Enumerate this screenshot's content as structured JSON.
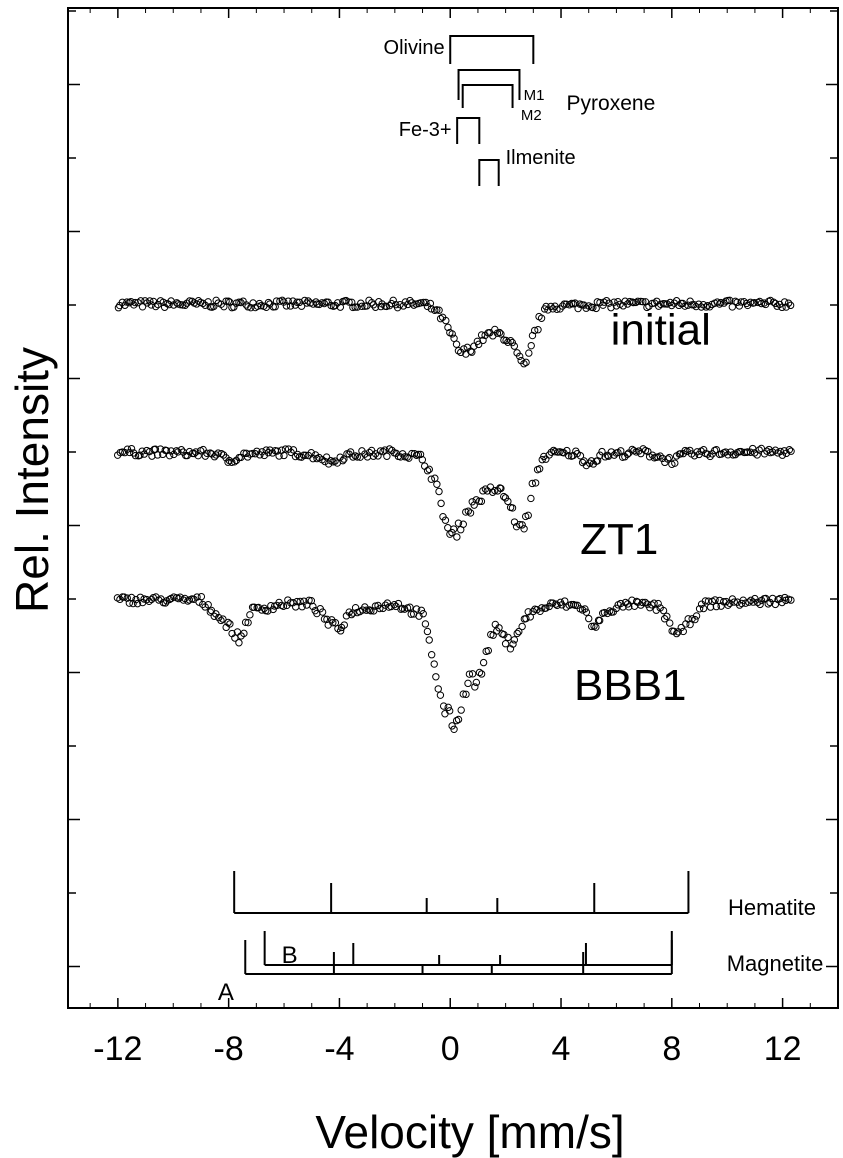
{
  "chart_data": {
    "type": "scatter",
    "xlabel": "Velocity [mm/s]",
    "ylabel": "Rel. Intensity",
    "xlim": [
      -13.8,
      14.0
    ],
    "x_ticks": [
      -12,
      -8,
      -4,
      0,
      4,
      8,
      12
    ],
    "x_tick_labels": [
      "-12",
      "-8",
      "-4",
      "0",
      "4",
      "8",
      "12"
    ],
    "grid": false,
    "series": [
      {
        "name": "initial",
        "baseline": 2.0,
        "points": [
          [
            -12,
            2.0
          ],
          [
            -9,
            2.0
          ],
          [
            -6,
            2.0
          ],
          [
            -3,
            2.0
          ],
          [
            -1,
            2.0
          ],
          [
            -0.6,
            1.94
          ],
          [
            -0.3,
            1.82
          ],
          [
            0,
            1.6
          ],
          [
            0.2,
            1.45
          ],
          [
            0.4,
            1.33
          ],
          [
            0.6,
            1.35
          ],
          [
            0.9,
            1.45
          ],
          [
            1.2,
            1.55
          ],
          [
            1.6,
            1.6
          ],
          [
            1.9,
            1.58
          ],
          [
            2.2,
            1.48
          ],
          [
            2.5,
            1.25
          ],
          [
            2.7,
            1.1
          ],
          [
            3.0,
            1.55
          ],
          [
            3.3,
            1.85
          ],
          [
            3.6,
            1.97
          ],
          [
            6,
            2.0
          ],
          [
            9,
            2.0
          ],
          [
            12.3,
            2.0
          ]
        ]
      },
      {
        "name": "ZT1",
        "baseline": 0.0,
        "points": [
          [
            -12,
            0.0
          ],
          [
            -8.5,
            -0.02
          ],
          [
            -8,
            -0.12
          ],
          [
            -7.5,
            -0.04
          ],
          [
            -6,
            0.0
          ],
          [
            -4.8,
            -0.05
          ],
          [
            -4.3,
            -0.14
          ],
          [
            -3.8,
            -0.05
          ],
          [
            -2,
            0.0
          ],
          [
            -1,
            -0.08
          ],
          [
            -0.6,
            -0.35
          ],
          [
            -0.3,
            -0.75
          ],
          [
            0,
            -1.15
          ],
          [
            0.3,
            -1.05
          ],
          [
            0.6,
            -0.8
          ],
          [
            1.0,
            -0.65
          ],
          [
            1.3,
            -0.55
          ],
          [
            1.6,
            -0.5
          ],
          [
            1.9,
            -0.55
          ],
          [
            2.2,
            -0.75
          ],
          [
            2.5,
            -1.05
          ],
          [
            2.8,
            -0.9
          ],
          [
            3.0,
            -0.45
          ],
          [
            3.3,
            -0.1
          ],
          [
            3.6,
            -0.02
          ],
          [
            4.5,
            -0.02
          ],
          [
            5,
            -0.15
          ],
          [
            5.5,
            -0.04
          ],
          [
            7,
            0.0
          ],
          [
            8,
            -0.12
          ],
          [
            8.5,
            -0.03
          ],
          [
            10,
            0.0
          ],
          [
            12.3,
            0.0
          ]
        ]
      },
      {
        "name": "BBB1",
        "baseline": -2.0,
        "points": [
          [
            -12,
            -2.0
          ],
          [
            -9,
            -2.0
          ],
          [
            -8,
            -2.35
          ],
          [
            -7.6,
            -2.55
          ],
          [
            -7.2,
            -2.15
          ],
          [
            -6,
            -2.05
          ],
          [
            -5,
            -2.05
          ],
          [
            -4.4,
            -2.3
          ],
          [
            -4.0,
            -2.4
          ],
          [
            -3.6,
            -2.15
          ],
          [
            -2,
            -2.05
          ],
          [
            -1.0,
            -2.2
          ],
          [
            -0.6,
            -2.8
          ],
          [
            -0.3,
            -3.4
          ],
          [
            0,
            -3.6
          ],
          [
            0.2,
            -3.7
          ],
          [
            0.4,
            -3.45
          ],
          [
            0.7,
            -2.95
          ],
          [
            0.9,
            -3.15
          ],
          [
            1.1,
            -3.0
          ],
          [
            1.3,
            -2.7
          ],
          [
            1.6,
            -2.35
          ],
          [
            1.9,
            -2.5
          ],
          [
            2.2,
            -2.6
          ],
          [
            2.5,
            -2.4
          ],
          [
            2.8,
            -2.2
          ],
          [
            3.4,
            -2.1
          ],
          [
            4,
            -2.05
          ],
          [
            4.8,
            -2.1
          ],
          [
            5.2,
            -2.4
          ],
          [
            5.6,
            -2.15
          ],
          [
            6.5,
            -2.05
          ],
          [
            7.6,
            -2.1
          ],
          [
            8.2,
            -2.5
          ],
          [
            8.6,
            -2.3
          ],
          [
            9.2,
            -2.05
          ],
          [
            12.3,
            -2.0
          ]
        ]
      }
    ],
    "curve_labels": [
      "initial",
      "ZT1",
      "BBB1"
    ],
    "top_markers": [
      {
        "label": "Olivine",
        "x1": 0.0,
        "x2": 3.0
      },
      {
        "label": "M1",
        "x1": 0.3,
        "x2": 2.5
      },
      {
        "label": "M2",
        "x1": 0.45,
        "x2": 2.25
      },
      {
        "label": "Pyroxene"
      },
      {
        "label": "Fe-3+",
        "x1": 0.25,
        "x2": 1.05
      },
      {
        "label": "Ilmenite",
        "x1": 1.05,
        "x2": 1.75
      }
    ],
    "stick_patterns": [
      {
        "label": "Hematite",
        "x_from": -7.8,
        "x_to": 8.6,
        "lines": [
          -7.8,
          -4.3,
          -0.85,
          1.7,
          5.2,
          8.6
        ]
      },
      {
        "label": "Magnetite",
        "sites": [
          {
            "label": "B",
            "x_from": -6.7,
            "x_to": 8.0,
            "lines": [
              -6.7,
              -3.5,
              -0.4,
              1.8,
              4.9,
              8.0
            ]
          },
          {
            "label": "A",
            "x_from": -7.4,
            "x_to": 8.0,
            "lines": [
              -7.4,
              -4.2,
              -1.0,
              1.5,
              4.8,
              8.0
            ]
          }
        ]
      }
    ]
  }
}
